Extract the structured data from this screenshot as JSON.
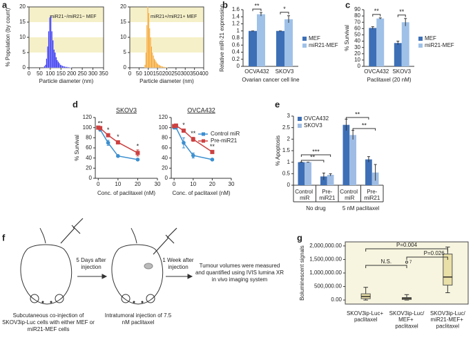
{
  "chart_data": [
    {
      "type": "histogram",
      "panel": "a",
      "ylabel": "% Population (by count)",
      "xlabel": "Particle diameter (nm)",
      "annotation": "miR21−/miR21− MEF",
      "color": "#3d3df2",
      "band_color": "#f5f0c8",
      "bins": [
        70,
        75,
        80,
        85,
        90,
        95,
        100,
        105,
        110,
        115,
        120,
        125,
        130,
        135,
        140,
        145,
        150,
        155,
        160,
        165,
        170,
        175,
        180,
        185,
        190,
        195,
        200
      ],
      "values": [
        0.5,
        1,
        3,
        7,
        12,
        16.5,
        17,
        12,
        9,
        6,
        5,
        3.5,
        2.5,
        2,
        1.5,
        1,
        0.8,
        0.6,
        0.5,
        0.4,
        0.3,
        0.3,
        0.2,
        0.2,
        0.1,
        0.1
      ],
      "xlim": [
        0,
        350
      ],
      "xticks": [
        0,
        50,
        100,
        150,
        200,
        250,
        300,
        350
      ],
      "ylim": [
        0,
        20
      ],
      "yticks": [
        0,
        5,
        10,
        15,
        20
      ]
    },
    {
      "type": "histogram",
      "xlabel": "Particle diameter (nm)",
      "annotation": "miR21+/miR21+ MEF",
      "color": "#f5a630",
      "band_color": "#f5f0c8",
      "bins": [
        80,
        85,
        90,
        95,
        100,
        105,
        110,
        115,
        120,
        125,
        130,
        135,
        140,
        145,
        150,
        155,
        160,
        165,
        170,
        175,
        180,
        185,
        190,
        195,
        200,
        205
      ],
      "values": [
        1,
        5,
        14,
        20,
        18,
        13,
        10,
        7,
        5,
        4,
        3,
        2.5,
        2,
        1.5,
        1.2,
        1,
        0.8,
        0.6,
        0.5,
        0.4,
        0.3,
        0.3,
        0.2,
        0.2,
        0.1
      ],
      "xlim": [
        0,
        400
      ],
      "xticks": [
        0,
        50,
        100,
        150,
        200,
        250,
        300,
        350,
        400
      ],
      "ylim": [
        0,
        20
      ],
      "yticks": [
        0,
        5,
        10,
        15,
        20
      ]
    },
    {
      "type": "bar",
      "panel": "b",
      "ylabel": "Relative miR-21 expression",
      "xlabel": "Ovarian cancer cell line",
      "categories": [
        "OCVA432",
        "SKOV3"
      ],
      "series": [
        {
          "name": "MEF",
          "color": "#3d6fb6",
          "values": [
            1,
            1
          ],
          "errors": [
            0,
            0
          ]
        },
        {
          "name": "miR21-MEF",
          "color": "#9fc1e8",
          "values": [
            1.47,
            1.33
          ],
          "errors": [
            0.05,
            0.1
          ]
        }
      ],
      "annotations": [
        "**",
        "*"
      ],
      "legend": "right",
      "ylim": [
        0,
        1.6
      ],
      "yticks": [
        0,
        0.2,
        0.4,
        0.6,
        0.8,
        1,
        1.2,
        1.4,
        1.6
      ]
    },
    {
      "type": "bar",
      "panel": "c",
      "ylabel": "% Survival",
      "xlabel": "Paclitaxel (20 nM)",
      "categories": [
        "OVCA432",
        "SKOV3"
      ],
      "series": [
        {
          "name": "MEF",
          "color": "#3d6fb6",
          "values": [
            61,
            37
          ],
          "errors": [
            2,
            3
          ]
        },
        {
          "name": "miR21-MEF",
          "color": "#9fc1e8",
          "values": [
            76,
            70
          ],
          "errors": [
            1,
            6
          ]
        }
      ],
      "annotations": [
        "**",
        "**"
      ],
      "legend": "right",
      "ylim": [
        0,
        90
      ],
      "yticks": [
        0,
        10,
        20,
        30,
        40,
        50,
        60,
        70,
        80,
        90
      ]
    },
    {
      "type": "line",
      "panel": "d",
      "title": "SKOV3",
      "ylabel": "% Survival",
      "xlabel": "Conc. of paclitaxel (nM)",
      "x": [
        0,
        1,
        5,
        10,
        20
      ],
      "series": [
        {
          "color": "#3b8fd0",
          "marker": "circle",
          "values": [
            100,
            96,
            70,
            44,
            37
          ],
          "errors": [
            2,
            3,
            5,
            2,
            2
          ]
        },
        {
          "color": "#cc4141",
          "marker": "square",
          "values": [
            100,
            99,
            85,
            71,
            50
          ],
          "errors": [
            2,
            2,
            3,
            3,
            6
          ]
        }
      ],
      "annotations": [
        null,
        "**",
        "*",
        "*",
        "*"
      ],
      "xlim": [
        -1.5,
        30
      ],
      "xticks": [
        0,
        10,
        20,
        30
      ],
      "ylim": [
        0,
        120
      ],
      "yticks": [
        0,
        20,
        40,
        60,
        80,
        100,
        120
      ]
    },
    {
      "type": "line",
      "title": "OVCA432",
      "xlabel": "Conc. of paclitaxel (nM)",
      "x": [
        0,
        1,
        5,
        10,
        20
      ],
      "series": [
        {
          "name": "Control miR",
          "color": "#3b8fd0",
          "marker": "circle",
          "values": [
            100,
            100,
            70,
            45,
            37
          ],
          "errors": [
            2,
            2,
            10,
            5,
            2
          ]
        },
        {
          "name": "Pre-miR21",
          "color": "#cc4141",
          "marker": "square",
          "values": [
            103,
            104,
            94,
            77,
            52
          ],
          "errors": [
            3,
            3,
            3,
            4,
            3
          ]
        }
      ],
      "annotations": [
        null,
        null,
        "*",
        "**",
        "**"
      ],
      "legend": "upper right",
      "xlim": [
        -1.5,
        30
      ],
      "xticks": [
        0,
        10,
        20,
        30
      ],
      "ylim": [
        0,
        120
      ],
      "yticks": [
        0,
        20,
        40,
        60,
        80,
        100,
        120
      ]
    },
    {
      "type": "bar",
      "panel": "e",
      "ylabel": "% Apoptosis",
      "categories": [
        "Control miR",
        "Pre-miR21",
        "Control miR",
        "Pre-miR21"
      ],
      "groups": [
        "No drug",
        "5 nM paclitaxel"
      ],
      "series": [
        {
          "name": "OVCA432",
          "color": "#3d6fb6",
          "values": [
            1,
            0.38,
            2.62,
            1.12
          ],
          "errors": [
            0,
            0.15,
            0.25,
            0.12
          ]
        },
        {
          "name": "SKOV3",
          "color": "#9fbde4",
          "values": [
            1,
            0.45,
            2.18,
            0.55
          ],
          "errors": [
            0,
            0.05,
            0.2,
            0.35
          ]
        }
      ],
      "brackets": [
        "**",
        "***",
        "**",
        "**"
      ],
      "legend": "upper left",
      "ylim": [
        0,
        3
      ],
      "yticks": [
        0,
        0.5,
        1,
        1.5,
        2,
        2.5,
        3
      ]
    },
    {
      "type": "box",
      "panel": "g",
      "ylabel": "Boluminescent signals",
      "categories": [
        "SKOV3ip-Luc+ paclitaxel",
        "SKOV3ip-Luc/MEF+ paclitaxel",
        "SKOV3ip-Luc/miR21-MEF+ paclitaxel"
      ],
      "min": [
        0,
        0,
        270000
      ],
      "q1": [
        50000,
        20000,
        550000
      ],
      "median": [
        130000,
        60000,
        850000
      ],
      "q3": [
        230000,
        90000,
        1700000
      ],
      "max": [
        470000,
        200000,
        1960000
      ],
      "outliers": [
        [],
        [
          1400000
        ],
        []
      ],
      "outlier_labels": [
        [],
        [
          "7"
        ],
        []
      ],
      "brackets": [
        "P=0.004",
        "N.S.",
        "P=0.026"
      ],
      "color": "#e9e0a8",
      "background": "#f7f5df",
      "ylim": [
        -150000,
        2150000
      ],
      "yticks": [
        {
          "value": 0,
          "label": "0.00"
        },
        {
          "value": 500000,
          "label": "500,000.00"
        },
        {
          "value": 1000000,
          "label": "1,000,000.00"
        },
        {
          "value": 1500000,
          "label": "1,500,000.00"
        },
        {
          "value": 2000000,
          "label": "2,000,000.00"
        }
      ]
    }
  ],
  "diagram": {
    "panel": "f",
    "steps": [
      "5 Days after injection",
      "1 Week after injection"
    ],
    "captions": [
      "Subcutaneous co-injection of SKOV3ip-Luc cells with either MEF or miR21-MEF cells",
      "Intratumoral injection of 7.5 nM paclitaxel"
    ],
    "result": "Tumour volumes were measured and quantified using IVIS lumina XR in vivo imaging system"
  }
}
